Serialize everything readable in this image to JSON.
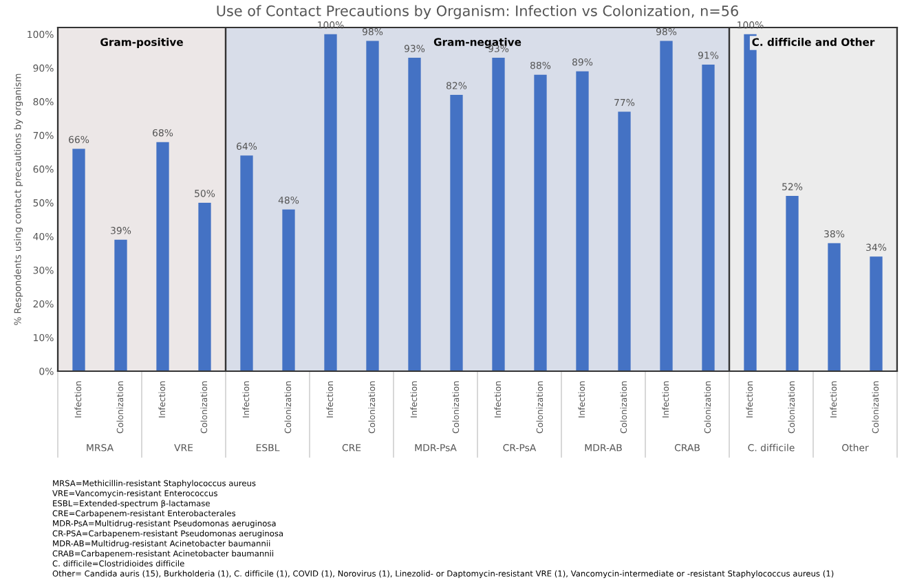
{
  "chart_data": {
    "type": "bar",
    "title": "Use of Contact Precautions by Organism: Infection vs Colonization, n=56",
    "ylabel": "% Respondents using contact precautions by organism",
    "categories": [
      "Infection",
      "Colonization",
      "Infection",
      "Colonization",
      "Infection",
      "Colonization",
      "Infection",
      "Colonization",
      "Infection",
      "Colonization",
      "Infection",
      "Colonization",
      "Infection",
      "Colonization",
      "Infection",
      "Colonization",
      "Infection",
      "Colonization",
      "Infection",
      "Colonization"
    ],
    "values": [
      66,
      39,
      68,
      50,
      64,
      48,
      100,
      98,
      93,
      82,
      93,
      88,
      89,
      77,
      98,
      91,
      100,
      52,
      38,
      34
    ],
    "color": "#4472c4",
    "data_labels": true,
    "value_labels": [
      "66%",
      "39%",
      "68%",
      "50%",
      "64%",
      "48%",
      "100%",
      "98%",
      "93%",
      "82%",
      "93%",
      "88%",
      "89%",
      "77%",
      "98%",
      "91%",
      "100%",
      "52%",
      "38%",
      "34%"
    ],
    "ylim": [
      0,
      102
    ],
    "yticks": [
      {
        "value": 0,
        "label": "0%"
      },
      {
        "value": 10,
        "label": "10%"
      },
      {
        "value": 20,
        "label": "20%"
      },
      {
        "value": 30,
        "label": "30%"
      },
      {
        "value": 40,
        "label": "40%"
      },
      {
        "value": 50,
        "label": "50%"
      },
      {
        "value": 60,
        "label": "60%"
      },
      {
        "value": 70,
        "label": "70%"
      },
      {
        "value": 80,
        "label": "80%"
      },
      {
        "value": 90,
        "label": "90%"
      },
      {
        "value": 100,
        "label": "100%"
      }
    ],
    "grid": false,
    "legend": false,
    "annotations": [
      "Gram-positive",
      "Gram-negative",
      "C. difficile and Other",
      "MRSA",
      "VRE",
      "ESBL",
      "CRE",
      "MDR-PsA",
      "CR-PsA",
      "MDR-AB",
      "CRAB",
      "C. difficile",
      "Other",
      "MRSA=Methicillin-resistant Staphylococcus aureus",
      "VRE=Vancomycin-resistant Enterococcus",
      "ESBL=Extended-spectrum β-lactamase",
      "CRE=Carbapenem-resistant Enterobacterales",
      "MDR-PsA=Multidrug-resistant Pseudomonas aeruginosa",
      "CR-PSA=Carbapenem-resistant Pseudomonas aeruginosa",
      "MDR-AB=Multidrug-resistant Acinetobacter baumannii",
      "CRAB=Carbapenem-resistant Acinetobacter baumannii",
      "C. difficile=Clostridioides difficile",
      "Other= Candida auris (15), Burkholderia (1), C. difficile (1), COVID (1), Norovirus (1), Linezolid- or Daptomycin-resistant VRE (1), Vancomycin-intermediate or -resistant Staphylococcus aureus (1)"
    ]
  }
}
